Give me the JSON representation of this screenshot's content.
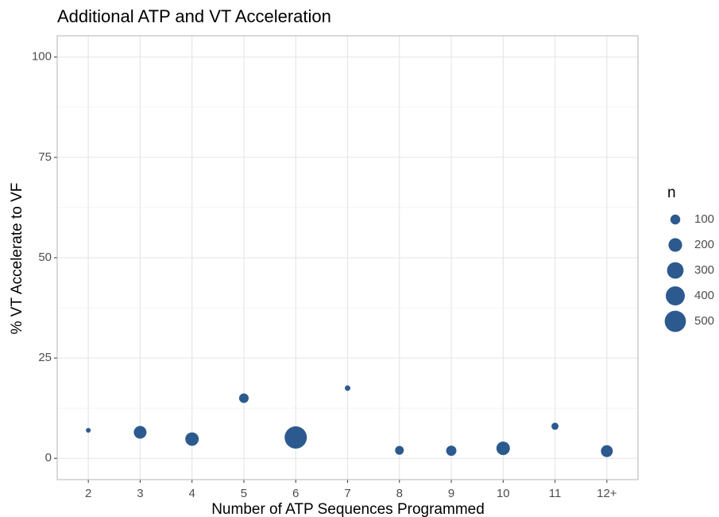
{
  "chart_data": {
    "type": "bubble",
    "title": "Additional ATP and VT Acceleration",
    "x_label": "Number of ATP Sequences Programmed",
    "y_label": "% VT Accelerate to VF",
    "categories": [
      "2",
      "3",
      "4",
      "5",
      "6",
      "7",
      "8",
      "9",
      "10",
      "11",
      "12+"
    ],
    "series": [
      {
        "name": "n",
        "color": "#2c5a8f",
        "values": [
          7,
          6.5,
          4.8,
          15,
          5.2,
          17.5,
          2,
          1.9,
          2.5,
          8,
          1.8
        ],
        "sizes": [
          15,
          172,
          195,
          92,
          550,
          24,
          76,
          109,
          195,
          47,
          149
        ]
      }
    ],
    "ylim": [
      -5.3,
      105.3
    ],
    "yticks": [
      0,
      25,
      50,
      75,
      100
    ],
    "minor_yticks": [
      12.5,
      37.5,
      62.5,
      87.5
    ],
    "grid": true,
    "legend": {
      "title": "n",
      "position": "right",
      "breaks": [
        100,
        200,
        300,
        400,
        500
      ]
    }
  }
}
